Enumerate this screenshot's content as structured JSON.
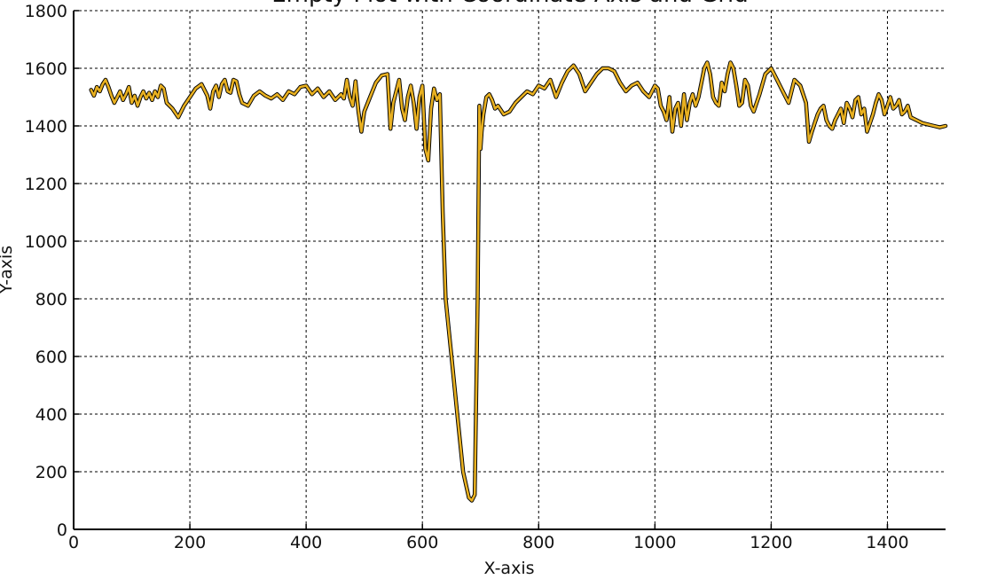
{
  "chart_data": {
    "type": "line",
    "title": "Empty Plot with Coordinate Axis and Grid",
    "xlabel": "X-axis",
    "ylabel": "Y-axis",
    "xlim": [
      0,
      1500
    ],
    "ylim": [
      0,
      1800
    ],
    "xticks": [
      0,
      200,
      400,
      600,
      800,
      1000,
      1200,
      1400
    ],
    "yticks": [
      0,
      200,
      400,
      600,
      800,
      1000,
      1200,
      1400,
      1600,
      1800
    ],
    "xtick_labels": [
      "0",
      "200",
      "400",
      "600",
      "800",
      "1000",
      "1200",
      "1400"
    ],
    "ytick_labels": [
      "0",
      "200",
      "400",
      "600",
      "800",
      "1000",
      "1200",
      "1400",
      "1600",
      "1800"
    ],
    "grid": true,
    "colors": {
      "line": "#e8b020",
      "outline": "#000000",
      "grid": "#000000"
    },
    "series": [
      {
        "x": [
          30,
          35,
          40,
          45,
          50,
          55,
          60,
          65,
          70,
          75,
          80,
          85,
          90,
          95,
          100,
          105,
          110,
          115,
          120,
          125,
          130,
          135,
          140,
          145,
          150,
          155,
          160,
          170,
          180,
          190,
          200,
          210,
          220,
          230,
          235,
          240,
          245,
          250,
          255,
          260,
          265,
          270,
          275,
          280,
          285,
          290,
          300,
          310,
          320,
          330,
          340,
          350,
          360,
          370,
          380,
          390,
          400,
          410,
          420,
          430,
          440,
          450,
          460,
          465,
          470,
          475,
          480,
          485,
          490,
          495,
          500,
          510,
          520,
          530,
          540,
          545,
          550,
          555,
          560,
          565,
          570,
          575,
          580,
          585,
          590,
          595,
          600,
          605,
          610,
          615,
          620,
          625,
          630,
          635,
          640,
          650,
          660,
          670,
          680,
          685,
          690,
          695,
          698,
          700,
          702,
          705,
          710,
          715,
          720,
          725,
          730,
          740,
          750,
          760,
          770,
          780,
          790,
          800,
          810,
          820,
          830,
          840,
          850,
          860,
          870,
          880,
          890,
          900,
          910,
          920,
          930,
          940,
          950,
          960,
          970,
          980,
          990,
          1000,
          1005,
          1010,
          1015,
          1020,
          1025,
          1030,
          1035,
          1040,
          1045,
          1050,
          1055,
          1060,
          1065,
          1070,
          1075,
          1080,
          1085,
          1090,
          1095,
          1100,
          1105,
          1110,
          1115,
          1120,
          1125,
          1130,
          1135,
          1140,
          1145,
          1150,
          1155,
          1160,
          1165,
          1170,
          1180,
          1190,
          1200,
          1210,
          1220,
          1230,
          1240,
          1250,
          1260,
          1265,
          1270,
          1275,
          1280,
          1285,
          1290,
          1295,
          1300,
          1305,
          1310,
          1315,
          1320,
          1325,
          1330,
          1335,
          1340,
          1345,
          1350,
          1355,
          1360,
          1365,
          1370,
          1375,
          1380,
          1385,
          1390,
          1395,
          1400,
          1405,
          1410,
          1415,
          1420,
          1425,
          1430,
          1435,
          1440,
          1450,
          1460,
          1470,
          1480,
          1490,
          1500
        ],
        "y": [
          1525,
          1505,
          1535,
          1520,
          1545,
          1560,
          1535,
          1505,
          1480,
          1500,
          1520,
          1490,
          1510,
          1535,
          1480,
          1505,
          1470,
          1500,
          1520,
          1495,
          1515,
          1490,
          1520,
          1500,
          1540,
          1530,
          1480,
          1460,
          1430,
          1470,
          1500,
          1530,
          1545,
          1505,
          1460,
          1520,
          1540,
          1500,
          1545,
          1560,
          1520,
          1515,
          1560,
          1555,
          1510,
          1480,
          1470,
          1505,
          1520,
          1505,
          1495,
          1510,
          1490,
          1520,
          1510,
          1535,
          1540,
          1510,
          1530,
          1500,
          1520,
          1490,
          1510,
          1495,
          1560,
          1500,
          1470,
          1555,
          1450,
          1380,
          1450,
          1500,
          1550,
          1575,
          1580,
          1390,
          1480,
          1520,
          1560,
          1460,
          1420,
          1500,
          1540,
          1480,
          1390,
          1500,
          1540,
          1320,
          1280,
          1460,
          1530,
          1490,
          1510,
          1100,
          800,
          600,
          400,
          200,
          110,
          100,
          120,
          800,
          1470,
          1320,
          1380,
          1440,
          1500,
          1510,
          1490,
          1460,
          1470,
          1440,
          1450,
          1480,
          1500,
          1520,
          1510,
          1540,
          1530,
          1560,
          1500,
          1550,
          1590,
          1610,
          1580,
          1520,
          1550,
          1580,
          1600,
          1600,
          1590,
          1550,
          1520,
          1540,
          1550,
          1520,
          1500,
          1540,
          1530,
          1470,
          1450,
          1420,
          1500,
          1380,
          1460,
          1480,
          1400,
          1510,
          1420,
          1480,
          1510,
          1470,
          1500,
          1550,
          1600,
          1620,
          1580,
          1500,
          1480,
          1470,
          1550,
          1520,
          1580,
          1620,
          1600,
          1540,
          1470,
          1480,
          1560,
          1540,
          1470,
          1450,
          1510,
          1580,
          1600,
          1560,
          1520,
          1480,
          1560,
          1540,
          1480,
          1345,
          1380,
          1410,
          1440,
          1460,
          1470,
          1420,
          1400,
          1390,
          1420,
          1440,
          1460,
          1410,
          1480,
          1460,
          1430,
          1490,
          1500,
          1440,
          1460,
          1380,
          1410,
          1440,
          1480,
          1510,
          1490,
          1440,
          1470,
          1500,
          1460,
          1470,
          1490,
          1440,
          1450,
          1470,
          1430,
          1420,
          1410,
          1405,
          1400,
          1395,
          1400
        ]
      }
    ]
  }
}
